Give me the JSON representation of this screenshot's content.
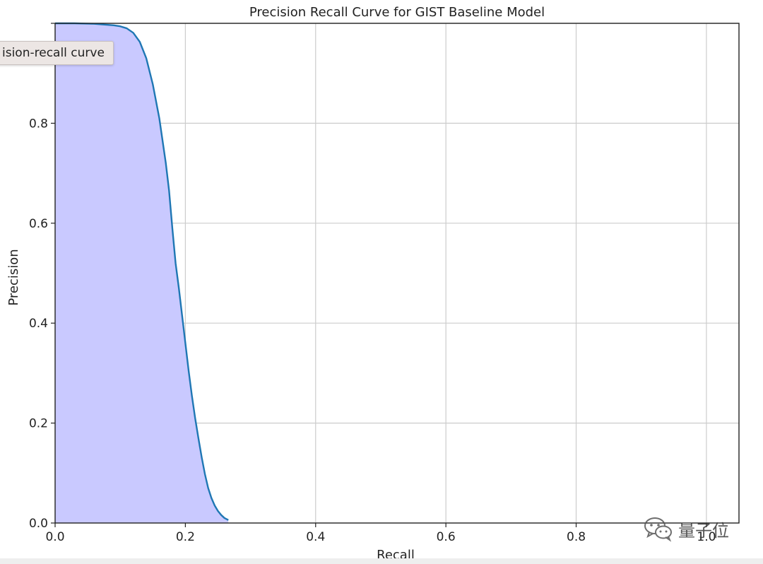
{
  "chart_data": {
    "type": "area",
    "title": "Precision Recall Curve for GIST Baseline Model",
    "xlabel": "Recall",
    "ylabel": "Precision",
    "xlim": [
      0.0,
      1.05
    ],
    "ylim": [
      0.0,
      1.0
    ],
    "xticks": [
      0.0,
      0.2,
      0.4,
      0.6,
      0.8,
      1.0
    ],
    "xtick_labels": [
      "0.0",
      "0.2",
      "0.4",
      "0.6",
      "0.8",
      "1.0"
    ],
    "yticks": [
      0.0,
      0.2,
      0.4,
      0.6,
      0.8
    ],
    "ytick_labels": [
      "0.0",
      "0.2",
      "0.4",
      "0.6",
      "0.8"
    ],
    "grid": true,
    "fill_color": "#c9c9ff",
    "line_color": "#1f77b4",
    "series": [
      {
        "x": [
          0.0,
          0.03,
          0.06,
          0.09,
          0.1,
          0.11,
          0.12,
          0.13,
          0.14,
          0.15,
          0.16,
          0.17,
          0.175,
          0.18,
          0.185,
          0.19,
          0.195,
          0.2,
          0.205,
          0.21,
          0.215,
          0.22,
          0.225,
          0.23,
          0.235,
          0.24,
          0.245,
          0.25,
          0.255,
          0.26,
          0.266
        ],
        "y": [
          1.0,
          1.0,
          0.999,
          0.996,
          0.994,
          0.99,
          0.981,
          0.963,
          0.93,
          0.878,
          0.81,
          0.72,
          0.665,
          0.59,
          0.52,
          0.47,
          0.415,
          0.36,
          0.305,
          0.255,
          0.21,
          0.17,
          0.132,
          0.098,
          0.07,
          0.05,
          0.035,
          0.024,
          0.016,
          0.01,
          0.006
        ]
      }
    ]
  },
  "tooltip": {
    "text": "ision-recall curve"
  },
  "watermark": {
    "text": "量子位"
  }
}
